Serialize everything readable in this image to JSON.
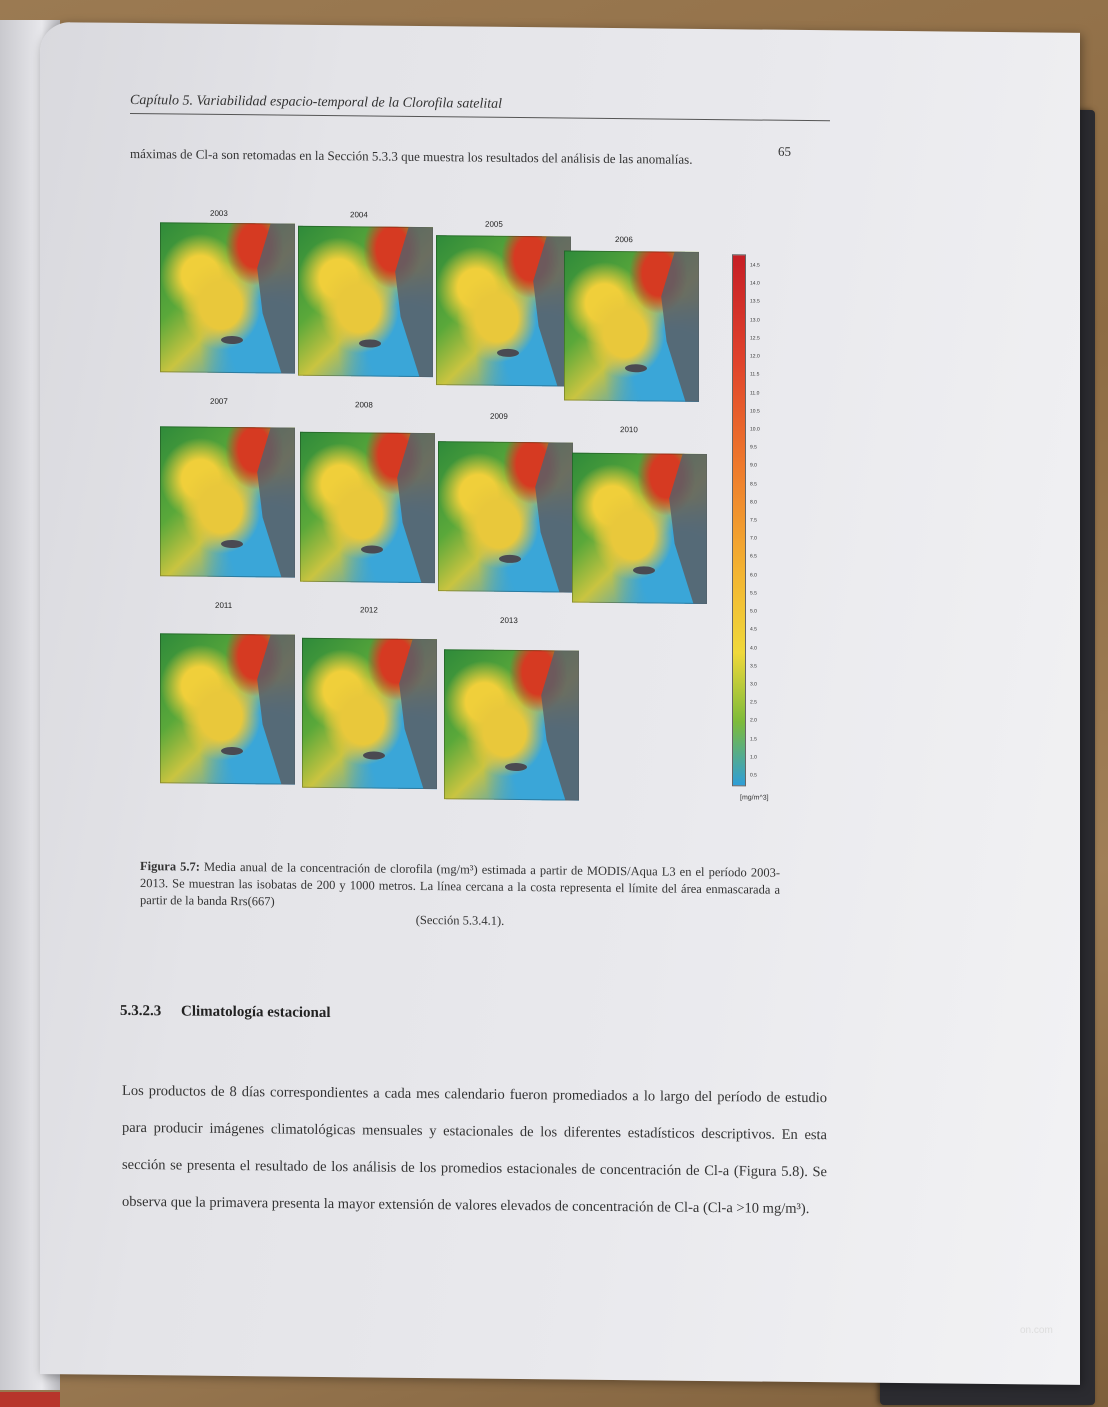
{
  "header": {
    "running_title": "Capítulo 5. Variabilidad espacio-temporal de la Clorofila satelital",
    "page_number": "65"
  },
  "intro": {
    "text": "máximas de Cl-a son retomadas en la Sección 5.3.3 que muestra los resultados del análisis de las anomalías."
  },
  "figure": {
    "years": [
      "2003",
      "2004",
      "2005",
      "2006",
      "2007",
      "2008",
      "2009",
      "2010",
      "2011",
      "2012",
      "2013"
    ],
    "colorbar": {
      "ticks": [
        "14.5",
        "14.0",
        "13.5",
        "13.0",
        "12.5",
        "12.0",
        "11.5",
        "11.0",
        "10.5",
        "10.0",
        "9.5",
        "9.0",
        "8.5",
        "8.0",
        "7.5",
        "7.0",
        "6.5",
        "6.0",
        "5.5",
        "5.0",
        "4.5",
        "4.0",
        "3.5",
        "3.0",
        "2.5",
        "2.0",
        "1.5",
        "1.0",
        "0.5"
      ],
      "units": "[mg/m^3]"
    }
  },
  "caption": {
    "label": "Figura 5.7:",
    "text": "Media anual de la concentración de clorofila (mg/m³) estimada a partir de MODIS/Aqua L3 en el período 2003-2013. Se muestran las isobatas de 200 y 1000 metros. La línea cercana a la costa representa el límite del área enmascarada a partir de la banda Rrs(667)",
    "tail": "(Sección 5.3.4.1)."
  },
  "section": {
    "number": "5.3.2.3",
    "title": "Climatología estacional"
  },
  "body": {
    "text": "Los productos de 8 días correspondientes a cada mes calendario fueron promediados a lo largo del período de estudio para producir imágenes climatológicas mensuales y estacionales de los diferentes estadísticos descriptivos. En esta sección se presenta el resultado de los análisis de los promedios estacionales de concentración de Cl-a (Figura 5.8). Se observa que la primavera presenta la mayor extensión de valores elevados de concentración de Cl-a (Cl-a >10 mg/m³)."
  },
  "watermark": "on.com"
}
